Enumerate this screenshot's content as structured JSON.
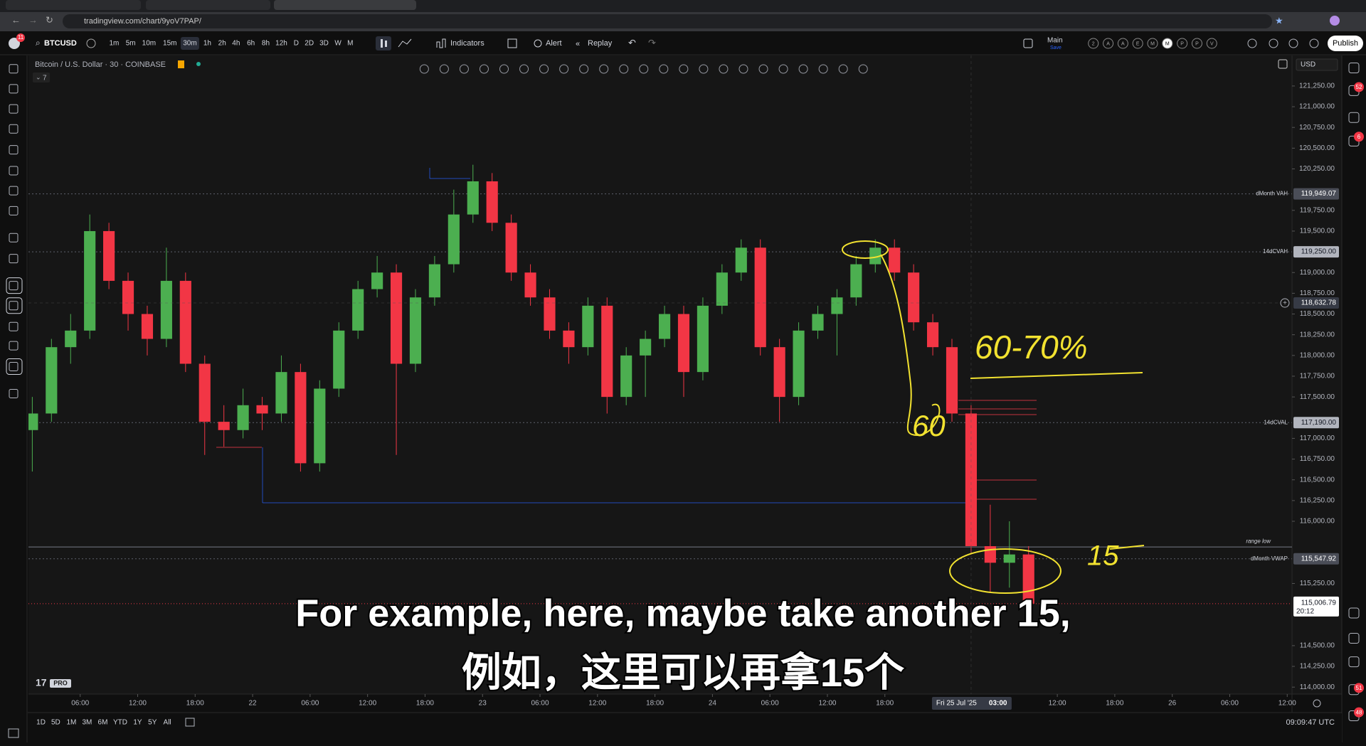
{
  "browser": {
    "url": "tradingview.com/chart/9yoV7PAP/"
  },
  "toolbar": {
    "notification_badge": "11",
    "symbol": "BTCUSD",
    "intervals": [
      "1m",
      "5m",
      "10m",
      "15m",
      "30m",
      "1h",
      "2h",
      "4h",
      "6h",
      "8h",
      "12h",
      "D",
      "2D",
      "3D",
      "W",
      "M"
    ],
    "active_interval": 4,
    "indicators": "Indicators",
    "alert": "Alert",
    "replay": "Replay",
    "layout_name": "Main",
    "layout_status": "Save",
    "quick_letters": [
      "2",
      "A",
      "A",
      "E",
      "M",
      "M",
      "P",
      "P",
      "V"
    ],
    "active_letter": 5,
    "publish": "Publish"
  },
  "legend": {
    "title": "Bitcoin / U.S. Dollar · 30 · COINBASE",
    "indicator_count": 7
  },
  "chart_data": {
    "type": "candlestick",
    "currency": "USD",
    "up_color": "#4caf50",
    "down_color": "#f23645",
    "x": [
      1,
      3,
      5,
      7,
      9,
      11,
      13,
      15,
      17,
      19,
      21,
      23,
      25,
      27,
      29,
      31,
      33,
      35,
      37,
      39,
      41,
      43,
      45,
      47,
      49,
      51,
      53,
      55,
      57,
      59,
      61,
      63,
      65,
      67,
      69,
      71,
      73,
      75,
      77,
      79,
      81,
      83,
      85,
      87,
      89,
      91,
      93,
      95,
      97,
      99,
      101,
      103,
      105
    ],
    "open": [
      117100,
      117300,
      118100,
      118300,
      119500,
      118900,
      118500,
      118200,
      118900,
      117900,
      117200,
      117100,
      117400,
      117300,
      117800,
      116700,
      117600,
      118300,
      118800,
      119000,
      117900,
      118700,
      119100,
      119700,
      120100,
      119600,
      119000,
      118700,
      118300,
      118100,
      118600,
      117500,
      118000,
      118200,
      118500,
      117800,
      118600,
      119000,
      119300,
      118100,
      117500,
      118300,
      118500,
      118700,
      119100,
      119300,
      119000,
      118400,
      118100,
      117300,
      115700,
      115500,
      115600
    ],
    "high": [
      117500,
      118200,
      118500,
      119700,
      119600,
      119000,
      118600,
      119300,
      119000,
      118000,
      117400,
      117600,
      117500,
      118000,
      117900,
      117700,
      118400,
      118900,
      119200,
      119100,
      118800,
      119200,
      120000,
      120300,
      120200,
      119700,
      119100,
      118800,
      118400,
      118700,
      118700,
      118100,
      118300,
      118600,
      118600,
      118700,
      119100,
      119400,
      119400,
      118200,
      118400,
      118600,
      118800,
      119200,
      119400,
      119400,
      119100,
      118500,
      118200,
      117400,
      116200,
      116000,
      115700
    ],
    "low": [
      116600,
      117200,
      117900,
      118200,
      118800,
      118300,
      118000,
      118100,
      117800,
      116800,
      116900,
      117000,
      117100,
      117200,
      116600,
      116600,
      117500,
      118200,
      118700,
      116800,
      117800,
      118600,
      119000,
      119600,
      119500,
      118900,
      118600,
      118200,
      117900,
      118000,
      117300,
      117400,
      117500,
      118100,
      117500,
      117700,
      118500,
      118900,
      118000,
      117200,
      117400,
      118200,
      118000,
      118600,
      119000,
      118900,
      118300,
      118000,
      117200,
      115600,
      115150,
      115200,
      114900
    ],
    "close": [
      117300,
      118100,
      118300,
      119500,
      118900,
      118500,
      118200,
      118900,
      117900,
      117200,
      117100,
      117400,
      117300,
      117800,
      116700,
      117600,
      118300,
      118800,
      119000,
      117900,
      118700,
      119100,
      119700,
      120100,
      119600,
      119000,
      118700,
      118300,
      118100,
      118600,
      117500,
      118000,
      118200,
      118500,
      117800,
      118600,
      119000,
      119300,
      118100,
      117500,
      118300,
      118500,
      118700,
      119100,
      119300,
      119000,
      118400,
      118100,
      117300,
      115700,
      115500,
      115600,
      115006.79
    ],
    "xlim": [
      0.6,
      132.5
    ],
    "xticks": [
      {
        "value": 6,
        "label": "06:00"
      },
      {
        "value": 12,
        "label": "12:00"
      },
      {
        "value": 18,
        "label": "18:00"
      },
      {
        "value": 24,
        "label": "22"
      },
      {
        "value": 30,
        "label": "06:00"
      },
      {
        "value": 36,
        "label": "12:00"
      },
      {
        "value": 42,
        "label": "18:00"
      },
      {
        "value": 48,
        "label": "23"
      },
      {
        "value": 54,
        "label": "06:00"
      },
      {
        "value": 60,
        "label": "12:00"
      },
      {
        "value": 66,
        "label": "18:00"
      },
      {
        "value": 72,
        "label": "24"
      },
      {
        "value": 78,
        "label": "06:00"
      },
      {
        "value": 84,
        "label": "12:00"
      },
      {
        "value": 90,
        "label": "18:00"
      },
      {
        "value": 108,
        "label": "12:00"
      },
      {
        "value": 114,
        "label": "18:00"
      },
      {
        "value": 120,
        "label": "26"
      },
      {
        "value": 126,
        "label": "06:00"
      },
      {
        "value": 132,
        "label": "12:00"
      }
    ],
    "ylim": [
      113916,
      121618
    ],
    "yticks": [
      {
        "value": 121250,
        "label": "121,250.00"
      },
      {
        "value": 121000,
        "label": "121,000.00"
      },
      {
        "value": 120750,
        "label": "120,750.00"
      },
      {
        "value": 120500,
        "label": "120,500.00"
      },
      {
        "value": 120250,
        "label": "120,250.00"
      },
      {
        "value": 119750,
        "label": "119,750.00"
      },
      {
        "value": 119500,
        "label": "119,500.00"
      },
      {
        "value": 119000,
        "label": "119,000.00"
      },
      {
        "value": 118750,
        "label": "118,750.00"
      },
      {
        "value": 118500,
        "label": "118,500.00"
      },
      {
        "value": 118250,
        "label": "118,250.00"
      },
      {
        "value": 118000,
        "label": "118,000.00"
      },
      {
        "value": 117750,
        "label": "117,750.00"
      },
      {
        "value": 117500,
        "label": "117,500.00"
      },
      {
        "value": 117000,
        "label": "117,000.00"
      },
      {
        "value": 116750,
        "label": "116,750.00"
      },
      {
        "value": 116500,
        "label": "116,500.00"
      },
      {
        "value": 116250,
        "label": "116,250.00"
      },
      {
        "value": 116000,
        "label": "116,000.00"
      },
      {
        "value": 115250,
        "label": "115,250.00"
      },
      {
        "value": 114500,
        "label": "114,500.00"
      },
      {
        "value": 114250,
        "label": "114,250.00"
      },
      {
        "value": 114000,
        "label": "114,000.00"
      }
    ],
    "grid": false,
    "levels": {
      "names": [
        "dMonth VAH",
        "14dCVAH",
        "14dCVAL",
        "dMonth VWAP"
      ],
      "values": [
        119949.07,
        119250,
        117190,
        115547.92
      ],
      "value_labels": [
        "119,949.07",
        "119,250.00",
        "117,190.00",
        "115,547.92"
      ]
    },
    "range_low": {
      "label": "range low",
      "value": 115690
    },
    "crosshair": {
      "price": 118632.78,
      "price_label": "118,632.78",
      "x": 99,
      "date_label": "Fri 25 Jul '25",
      "time_label": "03:00"
    },
    "last_price": {
      "value": 115006.79,
      "label": "115,006.79",
      "countdown": "20:12"
    },
    "annotations": {
      "range_note": "60-70%",
      "first_take": "60",
      "second_take": "15"
    },
    "logo_badge": "PRO"
  },
  "subtitles": [
    "For example, here, maybe take another 15,",
    "例如，这里可以再拿15个"
  ],
  "bottom_bar": {
    "ranges": [
      "1D",
      "5D",
      "1M",
      "3M",
      "6M",
      "YTD",
      "1Y",
      "5Y",
      "All"
    ],
    "clock": "09:09:47 UTC"
  },
  "sidebar_badges": [
    "52",
    "6",
    "51",
    "48"
  ]
}
